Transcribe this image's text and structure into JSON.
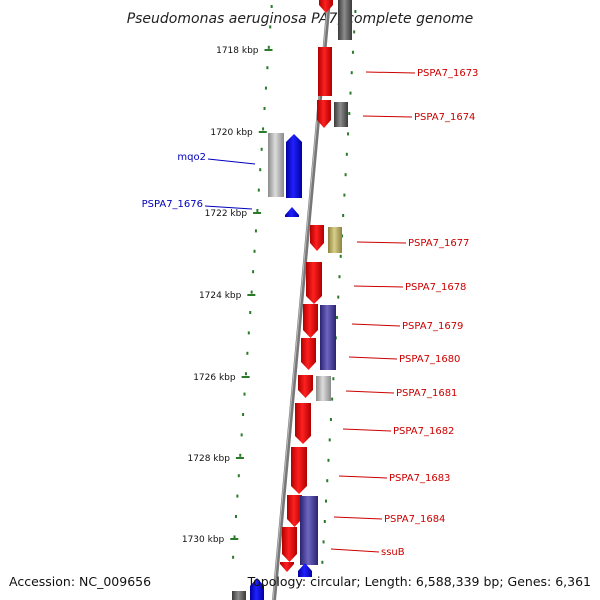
{
  "title": "Pseudomonas aeruginosa PA7, complete genome",
  "footer": {
    "accession": "Accession: NC_009656",
    "topology": "Topology: circular; Length: 6,588,339 bp; Genes: 6,361"
  },
  "colors": {
    "forward_gene": "#ff0000",
    "reverse_gene": "#0000ff",
    "grey_feature": "#aaaaaa",
    "dark_grey_feature": "#666666",
    "olive_feature": "#b8ad6a",
    "purple_feature": "#4a3fa0",
    "tick_green": "#2a7a2a",
    "label_red": "#cc0000",
    "label_blue": "#0000bb"
  },
  "ticks": [
    "1718 kbp",
    "1720 kbp",
    "1722 kbp",
    "1724 kbp",
    "1726 kbp",
    "1728 kbp",
    "1730 kbp"
  ],
  "gene_labels": [
    {
      "text": "mqo2",
      "color": "blue"
    },
    {
      "text": "PSPA7_1676",
      "color": "blue"
    },
    {
      "text": "PSPA7_1673",
      "color": "red"
    },
    {
      "text": "PSPA7_1674",
      "color": "red"
    },
    {
      "text": "PSPA7_1677",
      "color": "red"
    },
    {
      "text": "PSPA7_1678",
      "color": "red"
    },
    {
      "text": "PSPA7_1679",
      "color": "red"
    },
    {
      "text": "PSPA7_1680",
      "color": "red"
    },
    {
      "text": "PSPA7_1681",
      "color": "red"
    },
    {
      "text": "PSPA7_1682",
      "color": "red"
    },
    {
      "text": "PSPA7_1683",
      "color": "red"
    },
    {
      "text": "PSPA7_1684",
      "color": "red"
    },
    {
      "text": "ssuB",
      "color": "red"
    }
  ]
}
